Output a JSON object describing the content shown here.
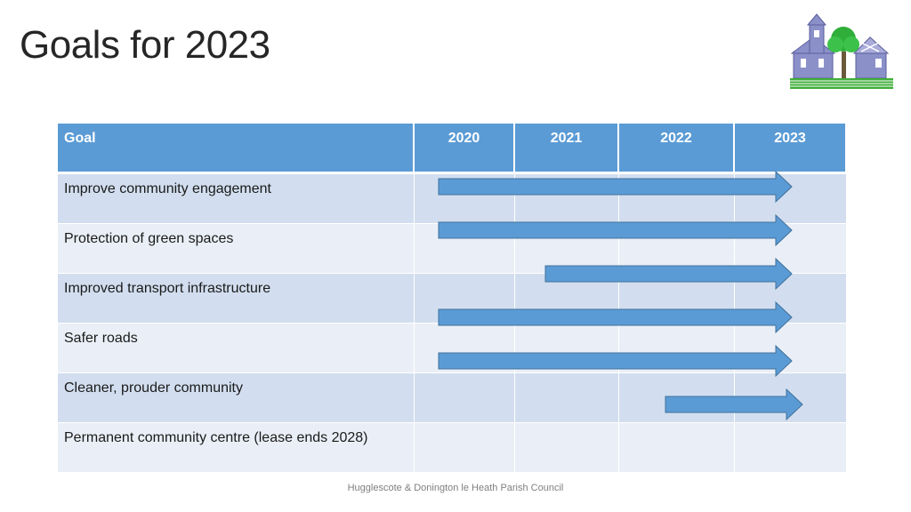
{
  "slide": {
    "title": "Goals for 2023",
    "footer": "Hugglescote & Donington le Heath Parish Council"
  },
  "table": {
    "headers": [
      "Goal",
      "2020",
      "2021",
      "2022",
      "2023"
    ],
    "rows": [
      {
        "goal": "Improve community engagement",
        "start": 2020.0,
        "end": 2023.5
      },
      {
        "goal": "Protection of green spaces",
        "start": 2020.0,
        "end": 2023.5
      },
      {
        "goal": "Improved transport infrastructure",
        "start": 2021.0,
        "end": 2023.5
      },
      {
        "goal": "Safer roads",
        "start": 2020.0,
        "end": 2023.5
      },
      {
        "goal": "Cleaner, prouder community",
        "start": 2020.0,
        "end": 2023.5
      },
      {
        "goal": "Permanent community centre (lease ends 2028)",
        "start": 2022.0,
        "end": 2023.6
      }
    ]
  },
  "colors": {
    "header_bg": "#5b9bd5",
    "row_odd": "#d2deef",
    "row_even": "#eaeff7",
    "arrow_fill": "#5b9bd5",
    "arrow_stroke": "#41719c"
  },
  "logo": {
    "icon": "church-and-tree-logo"
  }
}
